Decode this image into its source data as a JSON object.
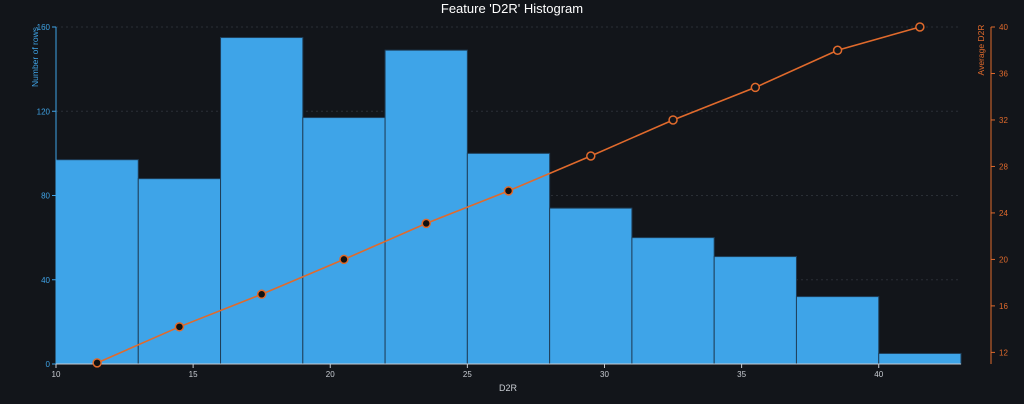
{
  "chart_data": {
    "type": "bar",
    "title": "Feature 'D2R' Histogram",
    "xlabel": "D2R",
    "ylabel": "Number of rows",
    "ylabel_right": "Average D2R",
    "xlim": [
      10,
      43
    ],
    "ylim": [
      0,
      160
    ],
    "ylim_right": [
      11,
      40
    ],
    "x_ticks": [
      10,
      15,
      20,
      25,
      30,
      35,
      40
    ],
    "y_ticks": [
      0,
      40,
      80,
      120,
      160
    ],
    "y_ticks_right": [
      12,
      16,
      20,
      24,
      28,
      32,
      36,
      40
    ],
    "bins": [
      {
        "start": 10,
        "end": 13,
        "count": 97
      },
      {
        "start": 13,
        "end": 16,
        "count": 88
      },
      {
        "start": 16,
        "end": 19,
        "count": 155
      },
      {
        "start": 19,
        "end": 22,
        "count": 117
      },
      {
        "start": 22,
        "end": 25,
        "count": 149
      },
      {
        "start": 25,
        "end": 28,
        "count": 100
      },
      {
        "start": 28,
        "end": 31,
        "count": 74
      },
      {
        "start": 31,
        "end": 34,
        "count": 60
      },
      {
        "start": 34,
        "end": 37,
        "count": 51
      },
      {
        "start": 37,
        "end": 40,
        "count": 32
      },
      {
        "start": 40,
        "end": 43,
        "count": 5
      }
    ],
    "line_series": {
      "x": [
        11.5,
        14.5,
        17.5,
        20.5,
        23.5,
        26.5,
        29.5,
        32.5,
        35.5,
        38.5,
        41.5
      ],
      "values": [
        11.1,
        14.2,
        17.0,
        20.0,
        23.1,
        25.9,
        28.9,
        32.0,
        34.8,
        38.0,
        40.0
      ],
      "filled": [
        true,
        true,
        true,
        true,
        true,
        true,
        false,
        false,
        false,
        false,
        false
      ]
    },
    "grid": true,
    "colors": {
      "bars": "#3ea4e8",
      "bar_edge": "#1f3f5a",
      "line": "#e06a2c",
      "marker_fill_dark": "#111111",
      "marker_fill_light": "#12151a",
      "left_axis": "#3fa3e6",
      "right_axis": "#e06a2c",
      "x_axis": "#c8ccd2"
    }
  }
}
